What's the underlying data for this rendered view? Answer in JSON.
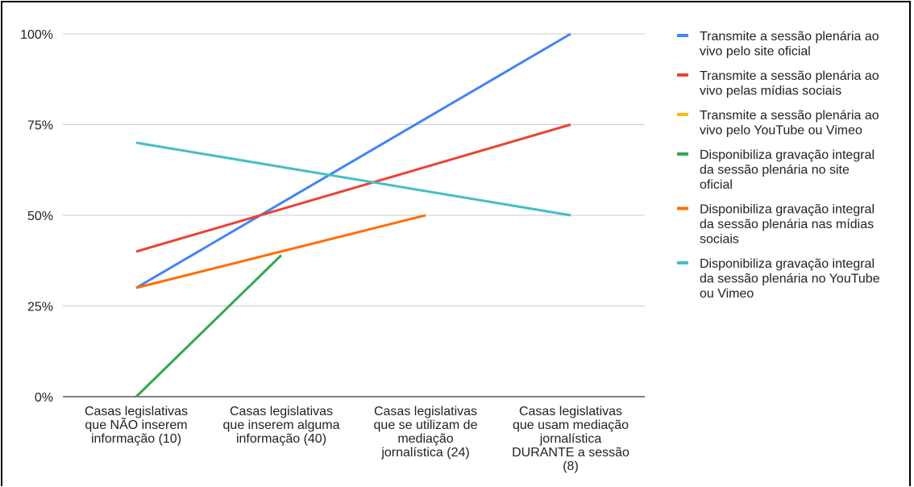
{
  "chart_data": {
    "type": "line",
    "title": "",
    "xlabel": "",
    "ylabel": "",
    "ylim": [
      0,
      100
    ],
    "yticks": [
      "0%",
      "25%",
      "50%",
      "75%",
      "100%"
    ],
    "grid": true,
    "legend_position": "right",
    "categories": [
      "Casas legislativas que NÃO inserem informação (10)",
      "Casas legislativas que inserem alguma informação (40)",
      "Casas legislativas que se utilizam de mediação jornalística (24)",
      "Casas legislativas que usam mediação jornalística DURANTE a sessão (8)"
    ],
    "category_lines": [
      [
        "Casas legislativas",
        "que NÃO inserem",
        "informação (10)"
      ],
      [
        "Casas legislativas",
        "que inserem alguma",
        "informação (40)"
      ],
      [
        "Casas legislativas",
        "que se utilizam de",
        "mediação",
        "jornalística (24)"
      ],
      [
        "Casas legislativas",
        "que usam mediação",
        "jornalística",
        "DURANTE a sessão",
        "(8)"
      ]
    ],
    "series": [
      {
        "name": "Transmite a sessão plenária ao vivo pelo site oficial",
        "legend_lines": [
          "Transmite a sessão plenária ao",
          "vivo pelo site oficial"
        ],
        "color": "#4285f4",
        "values": [
          30,
          null,
          null,
          100
        ]
      },
      {
        "name": "Transmite a sessão plenária ao vivo pelas mídias sociais",
        "legend_lines": [
          "Transmite a sessão plenária ao",
          "vivo pelas mídias sociais"
        ],
        "color": "#ea4335",
        "values": [
          40,
          null,
          null,
          75
        ]
      },
      {
        "name": "Transmite a sessão plenária ao vivo pelo YouTube ou Vimeo",
        "legend_lines": [
          "Transmite a sessão plenária ao",
          "vivo pelo YouTube ou Vimeo"
        ],
        "color": "#fbbc04",
        "values": [
          null,
          null,
          null,
          null
        ]
      },
      {
        "name": "Disponibiliza gravação integral da sessão plenária no site oficial",
        "legend_lines": [
          "Disponibiliza gravação integral",
          "da sessão plenária no site",
          "oficial"
        ],
        "color": "#34a853",
        "values": [
          0,
          39,
          null,
          null
        ]
      },
      {
        "name": "Disponibiliza gravação integral da sessão plenária nas mídias sociais",
        "legend_lines": [
          "Disponibiliza gravação integral",
          "da sessão plenária nas mídias",
          "sociais"
        ],
        "color": "#ff6d01",
        "values": [
          30,
          null,
          50,
          null
        ]
      },
      {
        "name": "Disponibiliza gravação integral da sessão plenária no YouTube ou Vimeo",
        "legend_lines": [
          "Disponibiliza gravação integral",
          "da sessão plenária no YouTube",
          "ou Vimeo"
        ],
        "color": "#46bdc6",
        "values": [
          70,
          null,
          null,
          50
        ]
      }
    ]
  }
}
